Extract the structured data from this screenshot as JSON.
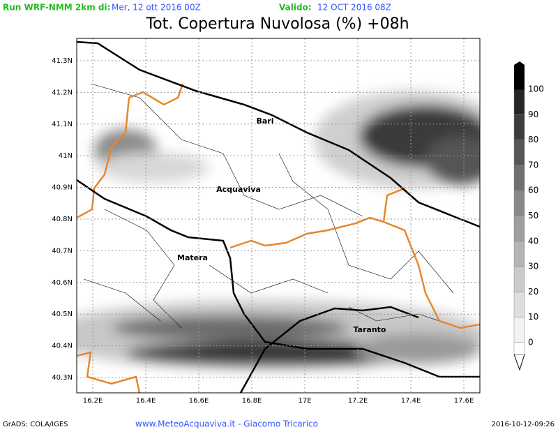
{
  "header": {
    "run_label": "Run WRF-NMM 2km di:",
    "run_date": "Mer, 12 ott 2016 00Z",
    "valid_label": "Valido:",
    "valid_date": "12 OCT 2016 08Z"
  },
  "title": "Tot. Copertura Nuvolosa (%) +08h",
  "map": {
    "lat_labels": [
      "41.3N",
      "41.2N",
      "41.1N",
      "41N",
      "40.9N",
      "40.8N",
      "40.7N",
      "40.6N",
      "40.5N",
      "40.4N",
      "40.3N"
    ],
    "lon_labels": [
      "16.2E",
      "16.4E",
      "16.6E",
      "16.8E",
      "17E",
      "17.2E",
      "17.4E",
      "17.6E"
    ],
    "cities": [
      "Bari",
      "Acquaviva",
      "Matera",
      "Taranto"
    ]
  },
  "colorbar": {
    "levels": [
      0,
      10,
      20,
      30,
      40,
      50,
      60,
      70,
      80,
      90,
      100
    ],
    "colors": [
      "#f2f2f2",
      "#dedede",
      "#cacaca",
      "#b4b4b4",
      "#9e9e9e",
      "#888888",
      "#707070",
      "#565656",
      "#3c3c3c",
      "#262626"
    ]
  },
  "footer": {
    "software": "GrADS: COLA/IGES",
    "credit": "www.MeteoAcquaviva.it - Giacomo Tricarico",
    "timestamp": "2016-10-12-09:26"
  }
}
